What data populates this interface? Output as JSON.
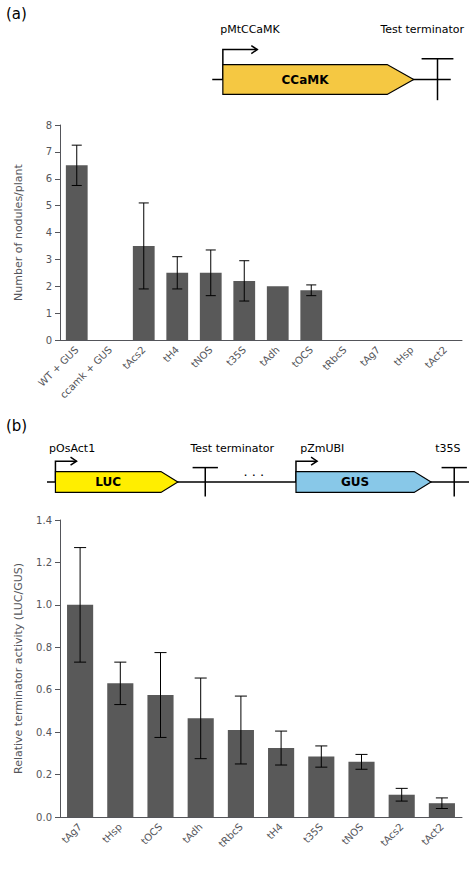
{
  "chart_data": [
    {
      "type": "bar",
      "categories": [
        "WT + GUS",
        "ccamk + GUS",
        "tAcs2",
        "tH4",
        "tNOS",
        "t35S",
        "tAdh",
        "tOCS",
        "tRbcS",
        "tAg7",
        "tHsp",
        "tAct2"
      ],
      "values": [
        6.5,
        0,
        3.5,
        2.5,
        2.5,
        2.2,
        2.0,
        1.85,
        0,
        0,
        0,
        0
      ],
      "errors": [
        0.75,
        0,
        1.6,
        0.6,
        0.85,
        0.75,
        0.0,
        0.2,
        0,
        0,
        0,
        0
      ],
      "color": "#595959",
      "ylabel": "Number of nodules/plant",
      "ylim": [
        0,
        8
      ],
      "yticks": [
        0,
        1,
        2,
        3,
        4,
        5,
        6,
        7,
        8
      ],
      "grid": false,
      "annotations": [
        "(a)",
        "pMtCCaMK",
        "Test terminator",
        {
          "text": "CCaMK",
          "color": "#F5C842"
        }
      ]
    },
    {
      "type": "bar",
      "categories": [
        "tAg7",
        "tHsp",
        "tOCS",
        "tAdh",
        "tRbcS",
        "tH4",
        "t35S",
        "tNOS",
        "tAcs2",
        "tAct2"
      ],
      "values": [
        1.0,
        0.63,
        0.575,
        0.465,
        0.41,
        0.325,
        0.285,
        0.26,
        0.105,
        0.065
      ],
      "errors_upper": [
        0.27,
        0.1,
        0.2,
        0.19,
        0.16,
        0.08,
        0.05,
        0.035,
        0.03,
        0.025
      ],
      "errors_lower": [
        0.27,
        0.1,
        0.2,
        0.19,
        0.16,
        0.08,
        0.05,
        0.035,
        0.03,
        0.025
      ],
      "color": "#595959",
      "ylabel": "Relative terminator activity (LUC/GUS)",
      "ylim": [
        0,
        1.4
      ],
      "yticks": [
        {
          "value": 0.0,
          "label": "0.0"
        },
        0.2,
        0.4,
        0.6,
        0.8,
        {
          "value": 1.0,
          "label": "1.0"
        },
        1.2,
        1.4
      ],
      "grid": false,
      "annotations": [
        "(b)",
        "pOsAct1",
        "Test terminator",
        "pZmUBI",
        "t35S",
        {
          "text": "LUC",
          "color": "#FFEE00"
        },
        {
          "text": "GUS",
          "color": "#88C8E8"
        },
        "· · ·"
      ]
    }
  ]
}
